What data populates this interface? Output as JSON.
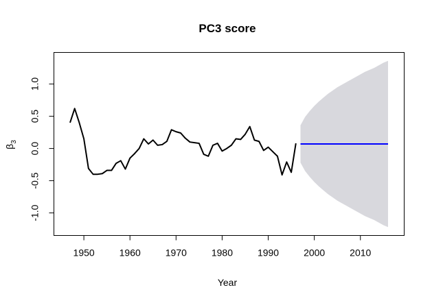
{
  "chart_data": {
    "type": "line",
    "title": "PC3 score",
    "xlabel": "Year",
    "ylabel": "β",
    "ylabel_subscript": "3",
    "xlim": [
      1943.5,
      2019.5
    ],
    "ylim": [
      -1.35,
      1.49
    ],
    "x_ticks": [
      1950,
      1960,
      1970,
      1980,
      1990,
      2000,
      2010
    ],
    "y_ticks": [
      -1.0,
      -0.5,
      0.0,
      0.5,
      1.0
    ],
    "y_tick_labels": [
      "-1.0",
      "-0.5",
      "0.0",
      "0.5",
      "1.0"
    ],
    "grid": false,
    "series": [
      {
        "role": "observed",
        "color": "#000000",
        "x": [
          1947,
          1948,
          1949,
          1950,
          1951,
          1952,
          1953,
          1954,
          1955,
          1956,
          1957,
          1958,
          1959,
          1960,
          1961,
          1962,
          1963,
          1964,
          1965,
          1966,
          1967,
          1968,
          1969,
          1970,
          1971,
          1972,
          1973,
          1974,
          1975,
          1976,
          1977,
          1978,
          1979,
          1980,
          1981,
          1982,
          1983,
          1984,
          1985,
          1986,
          1987,
          1988,
          1989,
          1990,
          1991,
          1992,
          1993,
          1994,
          1995,
          1996
        ],
        "y": [
          0.4,
          0.62,
          0.4,
          0.15,
          -0.31,
          -0.4,
          -0.4,
          -0.39,
          -0.34,
          -0.34,
          -0.23,
          -0.19,
          -0.32,
          -0.15,
          -0.08,
          0.0,
          0.15,
          0.07,
          0.13,
          0.05,
          0.06,
          0.11,
          0.29,
          0.26,
          0.24,
          0.16,
          0.1,
          0.09,
          0.08,
          -0.09,
          -0.12,
          0.05,
          0.08,
          -0.04,
          0.0,
          0.05,
          0.15,
          0.14,
          0.22,
          0.34,
          0.13,
          0.11,
          -0.03,
          0.02,
          -0.05,
          -0.12,
          -0.41,
          -0.21,
          -0.37,
          0.08
        ]
      },
      {
        "role": "forecast",
        "color": "#0000ff",
        "x": [
          1997,
          2016
        ],
        "y": [
          0.07,
          0.07
        ]
      }
    ],
    "band": {
      "role": "prediction-interval",
      "color": "#d8d8dd",
      "x": [
        1997,
        1998,
        1999,
        2000,
        2001,
        2002,
        2003,
        2004,
        2005,
        2006,
        2007,
        2008,
        2009,
        2010,
        2011,
        2012,
        2013,
        2014,
        2015,
        2016
      ],
      "upper": [
        0.36,
        0.49,
        0.58,
        0.66,
        0.73,
        0.79,
        0.85,
        0.9,
        0.95,
        0.99,
        1.03,
        1.07,
        1.11,
        1.15,
        1.19,
        1.22,
        1.25,
        1.29,
        1.33,
        1.36
      ],
      "lower": [
        -0.22,
        -0.35,
        -0.44,
        -0.52,
        -0.59,
        -0.65,
        -0.71,
        -0.76,
        -0.81,
        -0.85,
        -0.89,
        -0.93,
        -0.97,
        -1.01,
        -1.05,
        -1.08,
        -1.11,
        -1.15,
        -1.19,
        -1.22
      ]
    }
  }
}
